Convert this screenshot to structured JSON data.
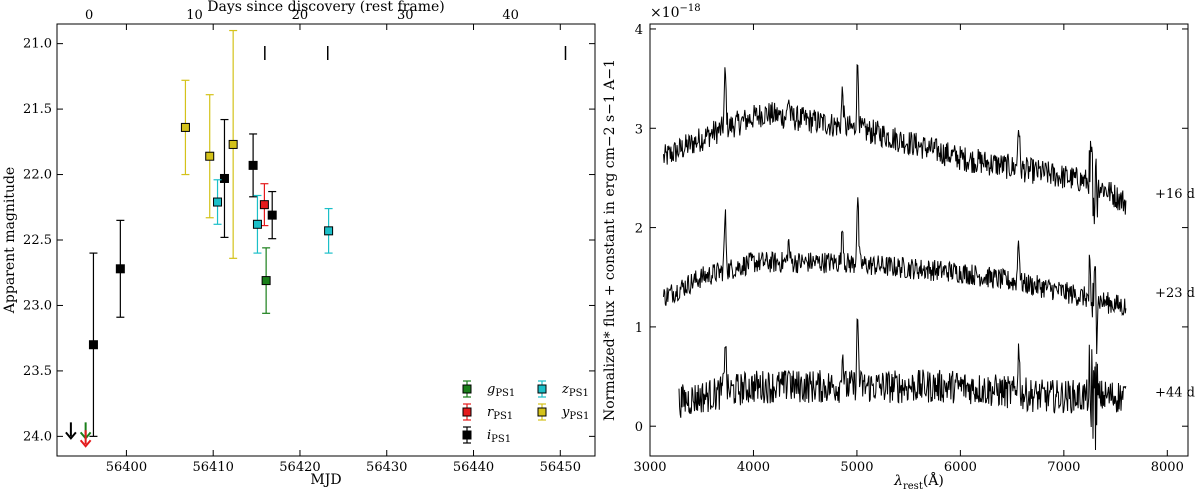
{
  "chart_data": [
    {
      "type": "scatter",
      "xlabel": "MJD",
      "ylabel": "Apparent magnitude",
      "top_xlabel": "Days since discovery (rest frame)",
      "xlim": [
        56392,
        56454
      ],
      "ylim": [
        24.15,
        20.85
      ],
      "xticks": [
        56400,
        56410,
        56420,
        56430,
        56440,
        56450
      ],
      "yticks": [
        21.0,
        21.5,
        22.0,
        22.5,
        23.0,
        23.5,
        24.0
      ],
      "top_ticks": [
        0,
        10,
        20,
        30,
        40
      ],
      "top_axis_origin_mjd": 56395.7,
      "top_axis_days_per_mjd": 0.8235,
      "spectrum_epochs_mjd": [
        56415.95,
        56423.2,
        56450.6
      ],
      "series": [
        {
          "name": "gPS1",
          "label": "g",
          "sub": "PS1",
          "color": "#1a7f1a",
          "points": [
            {
              "x": 56416.1,
              "y": 22.81,
              "err": 0.25
            }
          ]
        },
        {
          "name": "rPS1",
          "label": "r",
          "sub": "PS1",
          "color": "#e41a1c",
          "points": [
            {
              "x": 56415.9,
              "y": 22.23,
              "err": 0.16
            }
          ]
        },
        {
          "name": "iPS1",
          "label": "i",
          "sub": "PS1",
          "color": "#000000",
          "points": [
            {
              "x": 56396.2,
              "y": 23.3,
              "err": 0.7
            },
            {
              "x": 56399.3,
              "y": 22.72,
              "err": 0.37
            },
            {
              "x": 56411.3,
              "y": 22.03,
              "err": 0.45
            },
            {
              "x": 56414.6,
              "y": 21.93,
              "err": 0.24
            },
            {
              "x": 56416.8,
              "y": 22.31,
              "err": 0.18
            }
          ]
        },
        {
          "name": "zPS1",
          "label": "z",
          "sub": "PS1",
          "color": "#1bbfc8",
          "points": [
            {
              "x": 56410.5,
              "y": 22.21,
              "err": 0.17
            },
            {
              "x": 56415.1,
              "y": 22.38,
              "err": 0.22
            },
            {
              "x": 56423.3,
              "y": 22.43,
              "err": 0.17
            }
          ]
        },
        {
          "name": "yPS1",
          "label": "y",
          "sub": "PS1",
          "color": "#d4c21a",
          "points": [
            {
              "x": 56406.8,
              "y": 21.64,
              "err": 0.36
            },
            {
              "x": 56409.6,
              "y": 21.86,
              "err": 0.47
            },
            {
              "x": 56412.3,
              "y": 21.77,
              "err": 0.87
            }
          ]
        }
      ],
      "upper_limits": [
        {
          "x": 56393.6,
          "y": 24.0,
          "color": "#000000"
        },
        {
          "x": 56395.3,
          "y": 24.0,
          "color": "#1a7f1a"
        },
        {
          "x": 56395.3,
          "y": 24.06,
          "color": "#e41a1c"
        }
      ],
      "legend": "bottom-right",
      "grid": false
    },
    {
      "type": "line",
      "xlabel": "λrest(Å)",
      "xlabel_main": "λ",
      "xlabel_sub": "rest",
      "xlabel_tail": "(Å)",
      "ylabel": "Normalized* flux + constant in erg cm−2 s−1 A−1",
      "scale_factor": "×10−18",
      "xlim": [
        3000,
        8200
      ],
      "ylim": [
        -0.3,
        4.05
      ],
      "xticks": [
        3000,
        4000,
        5000,
        6000,
        7000,
        8000
      ],
      "yticks": [
        0,
        1,
        2,
        3,
        4
      ],
      "series": [
        {
          "name": "+16 d",
          "offset": 2.0,
          "x_start": 3130,
          "x_end": 7600,
          "noise": 0.13,
          "anchors": [
            [
              3130,
              0.7
            ],
            [
              3600,
              0.95
            ],
            [
              4100,
              1.15
            ],
            [
              4700,
              1.05
            ],
            [
              5200,
              0.95
            ],
            [
              6000,
              0.7
            ],
            [
              6800,
              0.55
            ],
            [
              7300,
              0.45
            ],
            [
              7600,
              0.25
            ]
          ]
        },
        {
          "name": "+23 d",
          "offset": 1.0,
          "x_start": 3130,
          "x_end": 7600,
          "noise": 0.11,
          "anchors": [
            [
              3130,
              0.3
            ],
            [
              3500,
              0.5
            ],
            [
              4000,
              0.65
            ],
            [
              4800,
              0.65
            ],
            [
              5400,
              0.6
            ],
            [
              6000,
              0.55
            ],
            [
              6800,
              0.4
            ],
            [
              7600,
              0.2
            ]
          ]
        },
        {
          "name": "+44 d",
          "offset": 0.0,
          "x_start": 3280,
          "x_end": 7600,
          "noise": 0.17,
          "anchors": [
            [
              3280,
              0.25
            ],
            [
              4000,
              0.4
            ],
            [
              5000,
              0.4
            ],
            [
              6000,
              0.4
            ],
            [
              6800,
              0.3
            ],
            [
              7600,
              0.3
            ]
          ]
        }
      ],
      "emission_lines": [
        [
          3727,
          0.55
        ],
        [
          4340,
          0.2
        ],
        [
          4861,
          0.35
        ],
        [
          5007,
          0.65
        ],
        [
          6563,
          0.45
        ]
      ],
      "grid": false
    }
  ]
}
